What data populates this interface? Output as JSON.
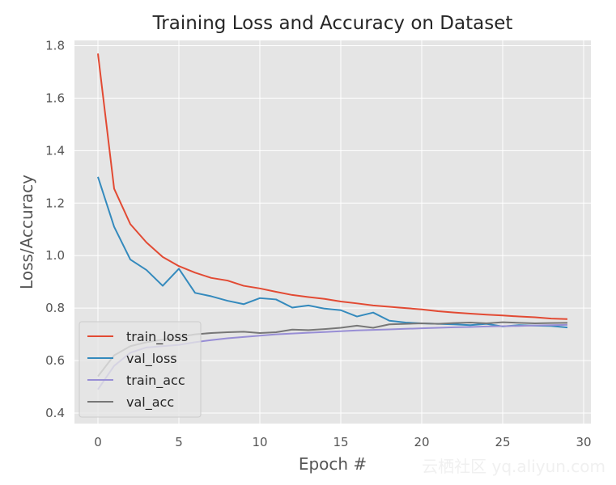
{
  "chart_data": {
    "type": "line",
    "title": "Training Loss and Accuracy on Dataset",
    "xlabel": "Epoch #",
    "ylabel": "Loss/Accuracy",
    "xlim": [
      -1.45,
      30.45
    ],
    "ylim": [
      0.36,
      1.82
    ],
    "xticks": [
      0,
      5,
      10,
      15,
      20,
      25,
      30
    ],
    "yticks": [
      0.4,
      0.6,
      0.8,
      1.0,
      1.2,
      1.4,
      1.6,
      1.8
    ],
    "xtick_labels": [
      "0",
      "5",
      "10",
      "15",
      "20",
      "25",
      "30"
    ],
    "ytick_labels": [
      "0.4",
      "0.6",
      "0.8",
      "1.0",
      "1.2",
      "1.4",
      "1.6",
      "1.8"
    ],
    "grid": true,
    "legend_position": "lower-left",
    "background_color": "#e5e5e5",
    "x": [
      0,
      1,
      2,
      3,
      4,
      5,
      6,
      7,
      8,
      9,
      10,
      11,
      12,
      13,
      14,
      15,
      16,
      17,
      18,
      19,
      20,
      21,
      22,
      23,
      24,
      25,
      26,
      27,
      28,
      29
    ],
    "series": [
      {
        "name": "train_loss",
        "color": "#e24a33",
        "values": [
          1.77,
          1.255,
          1.12,
          1.05,
          0.995,
          0.96,
          0.935,
          0.915,
          0.905,
          0.885,
          0.875,
          0.862,
          0.85,
          0.842,
          0.835,
          0.825,
          0.818,
          0.81,
          0.805,
          0.8,
          0.795,
          0.788,
          0.783,
          0.779,
          0.775,
          0.772,
          0.768,
          0.765,
          0.76,
          0.758
        ]
      },
      {
        "name": "val_loss",
        "color": "#348abd",
        "values": [
          1.3,
          1.11,
          0.985,
          0.945,
          0.885,
          0.95,
          0.858,
          0.845,
          0.828,
          0.815,
          0.838,
          0.833,
          0.802,
          0.81,
          0.798,
          0.792,
          0.768,
          0.783,
          0.752,
          0.745,
          0.742,
          0.74,
          0.738,
          0.735,
          0.74,
          0.73,
          0.735,
          0.733,
          0.732,
          0.726
        ]
      },
      {
        "name": "train_acc",
        "color": "#988ed5",
        "values": [
          0.49,
          0.58,
          0.63,
          0.65,
          0.655,
          0.66,
          0.67,
          0.678,
          0.685,
          0.69,
          0.695,
          0.7,
          0.703,
          0.706,
          0.709,
          0.712,
          0.715,
          0.717,
          0.719,
          0.721,
          0.723,
          0.725,
          0.727,
          0.728,
          0.73,
          0.731,
          0.732,
          0.734,
          0.735,
          0.736
        ]
      },
      {
        "name": "val_acc",
        "color": "#777777",
        "values": [
          0.54,
          0.62,
          0.655,
          0.67,
          0.68,
          0.69,
          0.7,
          0.705,
          0.708,
          0.71,
          0.705,
          0.708,
          0.718,
          0.716,
          0.72,
          0.725,
          0.733,
          0.725,
          0.738,
          0.74,
          0.742,
          0.74,
          0.743,
          0.745,
          0.742,
          0.746,
          0.744,
          0.742,
          0.743,
          0.744
        ]
      }
    ]
  },
  "watermark": "云栖社区 yq.aliyun.com"
}
